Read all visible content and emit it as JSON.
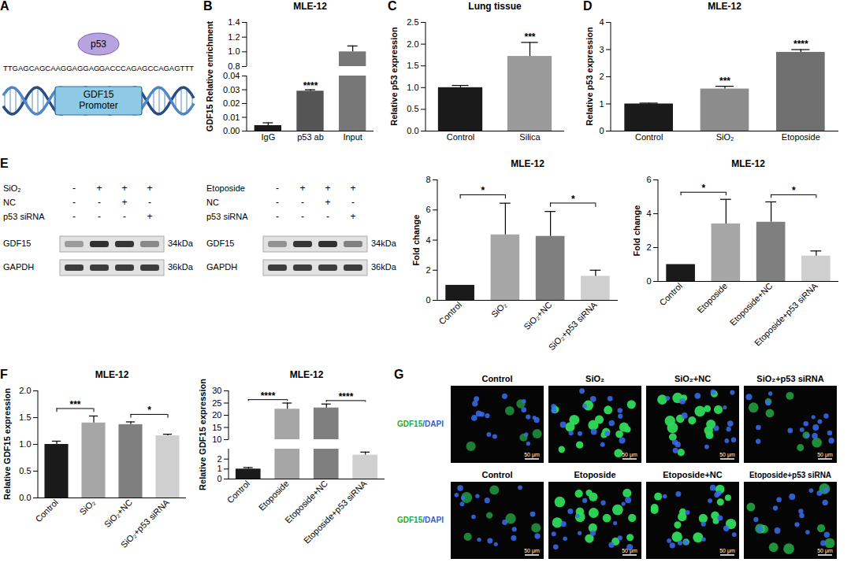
{
  "diagram": {
    "panel": "A",
    "protein": "p53",
    "left_sequence": "TTGAGCAGCAAGGAGGAG",
    "right_sequence": "GACCCAGAGCCAGAGTTT",
    "element": "GDF15 Promoter"
  },
  "chart_data": [
    {
      "type": "bar",
      "panel": "B",
      "title": "MLE-12",
      "ylabel": "GDF15 Relative enrichment",
      "categories": [
        "IgG",
        "p53 ab",
        "Input"
      ],
      "values": [
        0.004,
        0.029,
        1.0
      ],
      "errors": [
        0.002,
        0.001,
        0.08
      ],
      "colors": [
        "#1a1a1a",
        "#555555",
        "#777777"
      ],
      "ylim": [
        0,
        1.4
      ],
      "y_break": [
        0.04,
        0.8
      ],
      "yticks": [
        {
          "value": 0,
          "label": "0.00"
        },
        0.01,
        0.02,
        0.03,
        0.04,
        0.8,
        {
          "value": 1,
          "label": "1.0"
        },
        1.2,
        1.4
      ],
      "annotations": [
        {
          "category": "p53 ab",
          "label": "****"
        }
      ]
    },
    {
      "type": "bar",
      "panel": "C",
      "title": "Lung tissue",
      "ylabel": "Relative p53 expression",
      "categories": [
        "Control",
        "Silica"
      ],
      "values": [
        1.0,
        1.72
      ],
      "errors": [
        0.05,
        0.32
      ],
      "colors": [
        "#1a1a1a",
        "#9a9a9a"
      ],
      "ylim": [
        0,
        2.5
      ],
      "yticks": [
        {
          "value": 0,
          "label": "0.0"
        },
        0.5,
        {
          "value": 1,
          "label": "1.0"
        },
        1.5,
        {
          "value": 2,
          "label": "2.0"
        },
        2.5
      ],
      "annotations": [
        {
          "category": "Silica",
          "label": "***"
        }
      ]
    },
    {
      "type": "bar",
      "panel": "D",
      "title": "MLE-12",
      "ylabel": "Relative p53 expression",
      "categories": [
        "Control",
        "SiO₂",
        "Etoposide"
      ],
      "values": [
        1.0,
        1.55,
        2.9
      ],
      "errors": [
        0.03,
        0.1,
        0.1
      ],
      "colors": [
        "#1a1a1a",
        "#8c8c8c",
        "#6f6f6f"
      ],
      "ylim": [
        0,
        4
      ],
      "yticks": [
        0,
        1,
        2,
        3,
        4
      ],
      "annotations": [
        {
          "category": "SiO₂",
          "label": "***"
        },
        {
          "category": "Etoposide",
          "label": "****"
        }
      ]
    },
    {
      "type": "bar",
      "title": "MLE-12",
      "ylabel": "Fold change",
      "categories": [
        "Control",
        "SiO₂",
        "SiO₂+NC",
        "SiO₂+p53 siRNA"
      ],
      "values": [
        1,
        4.35,
        4.25,
        1.6
      ],
      "errors": [
        null,
        2.1,
        1.65,
        0.4
      ],
      "colors": [
        "#1a1a1a",
        "#a6a6a6",
        "#7f7f7f",
        "#cfcfcf"
      ],
      "ylim": [
        0,
        8
      ],
      "yticks": [
        0,
        2,
        4,
        6,
        8
      ],
      "comparisons": [
        {
          "between": [
            "Control",
            "SiO₂"
          ],
          "label": "*"
        },
        {
          "between": [
            "SiO₂+NC",
            "SiO₂+p53 siRNA"
          ],
          "label": "*"
        }
      ]
    },
    {
      "type": "bar",
      "title": "MLE-12",
      "ylabel": "Fold change",
      "categories": [
        "Control",
        "Etoposide",
        "Etoposide+NC",
        "Etoposide+p53 siRNA"
      ],
      "values": [
        1,
        3.4,
        3.5,
        1.5
      ],
      "errors": [
        null,
        1.45,
        1.2,
        0.3
      ],
      "colors": [
        "#1a1a1a",
        "#a6a6a6",
        "#7f7f7f",
        "#cfcfcf"
      ],
      "ylim": [
        0,
        6
      ],
      "yticks": [
        0,
        2,
        4,
        6
      ],
      "comparisons": [
        {
          "between": [
            "Control",
            "Etoposide"
          ],
          "label": "*"
        },
        {
          "between": [
            "Etoposide+NC",
            "Etoposide+p53 siRNA"
          ],
          "label": "*"
        }
      ]
    },
    {
      "type": "bar",
      "panel": "F",
      "title": "MLE-12",
      "ylabel": "Relative GDF15 expression",
      "categories": [
        "Control",
        "SiO₂",
        "SiO₂+NC",
        "SiO₂+p53 siRNA"
      ],
      "values": [
        1.0,
        1.4,
        1.37,
        1.16
      ],
      "errors": [
        0.06,
        0.13,
        0.05,
        0.03
      ],
      "colors": [
        "#1a1a1a",
        "#a6a6a6",
        "#7f7f7f",
        "#cfcfcf"
      ],
      "ylim": [
        0,
        2
      ],
      "yticks": [
        {
          "value": 0,
          "label": "0.0"
        },
        0.5,
        {
          "value": 1,
          "label": "1.0"
        },
        1.5,
        {
          "value": 2,
          "label": "2.0"
        }
      ],
      "comparisons": [
        {
          "between": [
            "Control",
            "SiO₂"
          ],
          "label": "***"
        },
        {
          "between": [
            "SiO₂+NC",
            "SiO₂+p53 siRNA"
          ],
          "label": "*"
        }
      ]
    },
    {
      "type": "bar",
      "title": "MLE-12",
      "ylabel": "Relative GDF15 expression",
      "categories": [
        "Control",
        "Etoposide",
        "Etoposide+NC",
        "Etoposide+p53 siRNA"
      ],
      "values": [
        1.0,
        22.5,
        23.0,
        2.4
      ],
      "errors": [
        0.15,
        2.5,
        1.6,
        0.3
      ],
      "colors": [
        "#1a1a1a",
        "#a6a6a6",
        "#7f7f7f",
        "#cfcfcf"
      ],
      "ylim": [
        0,
        30
      ],
      "y_break": [
        3,
        10
      ],
      "yticks": [
        0,
        1,
        2,
        10,
        15,
        20,
        25,
        30
      ],
      "comparisons": [
        {
          "between": [
            "Control",
            "Etoposide"
          ],
          "label": "****"
        },
        {
          "between": [
            "Etoposide+NC",
            "Etoposide+p53 siRNA"
          ],
          "label": "****"
        }
      ]
    }
  ],
  "blots": {
    "panel": "E",
    "blots": [
      {
        "rows": [
          {
            "label": "SiO₂",
            "signs": [
              "-",
              "+",
              "+",
              "+"
            ]
          },
          {
            "label": "NC",
            "signs": [
              "-",
              "-",
              "+",
              "-"
            ]
          },
          {
            "label": "p53 siRNA",
            "signs": [
              "-",
              "-",
              "-",
              "+"
            ]
          }
        ],
        "bands": [
          {
            "label": "GDF15",
            "size": "34kDa"
          },
          {
            "label": "GAPDH",
            "size": "36kDa"
          }
        ]
      },
      {
        "rows": [
          {
            "label": "Etoposide",
            "signs": [
              "-",
              "+",
              "+",
              "+"
            ]
          },
          {
            "label": "NC",
            "signs": [
              "-",
              "-",
              "+",
              "-"
            ]
          },
          {
            "label": "p53 siRNA",
            "signs": [
              "-",
              "-",
              "-",
              "+"
            ]
          }
        ],
        "bands": [
          {
            "label": "GDF15",
            "size": "34kDa"
          },
          {
            "label": "GAPDH",
            "size": "36kDa"
          }
        ]
      }
    ]
  },
  "images": {
    "panel": "G",
    "row_label_parts": [
      {
        "text": "GDF15",
        "color": "#1fa83a"
      },
      {
        "text": "/DAPI",
        "color": "#2f5fd0"
      }
    ],
    "scale_bar": "50 μm",
    "rows": [
      {
        "titles": [
          "Control",
          "SiO₂",
          "SiO₂+NC",
          "SiO₂+p53 siRNA"
        ]
      },
      {
        "titles": [
          "Control",
          "Etoposide",
          "Etoposide+NC",
          "Etoposide+p53 siRNA"
        ]
      }
    ]
  }
}
